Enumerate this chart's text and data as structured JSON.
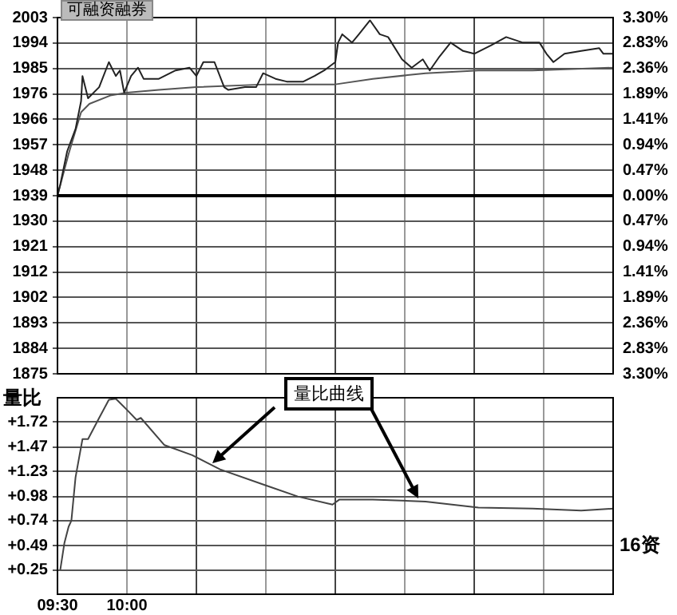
{
  "chart_data": [
    {
      "type": "line",
      "annotations": [
        "可融资融券"
      ],
      "marker": "none",
      "grid": true,
      "tick_labels": "y",
      "xlim": [
        9.5,
        13.5
      ],
      "xticks": [
        {
          "value": 9.5,
          "label": null
        },
        {
          "value": 10,
          "label": null
        },
        {
          "value": 10.5,
          "label": null
        },
        {
          "value": 11,
          "label": null
        },
        {
          "value": 11.5,
          "label": null
        },
        {
          "value": 12,
          "label": null
        },
        {
          "value": 12.5,
          "label": null
        },
        {
          "value": 13,
          "label": null
        },
        {
          "value": 13.5,
          "label": null
        }
      ],
      "ylim": [
        1875,
        2003
      ],
      "yticks": [
        {
          "value": 1875,
          "label": "1875"
        },
        {
          "value": 1884.14,
          "label": "1884"
        },
        {
          "value": 1893.29,
          "label": "1893"
        },
        {
          "value": 1902.43,
          "label": "1902"
        },
        {
          "value": 1911.57,
          "label": "1912"
        },
        {
          "value": 1920.71,
          "label": "1921"
        },
        {
          "value": 1929.86,
          "label": "1930"
        },
        {
          "value": 1939,
          "label": "1939"
        },
        {
          "value": 1948.14,
          "label": "1948"
        },
        {
          "value": 1957.29,
          "label": "1957"
        },
        {
          "value": 1966.43,
          "label": "1966"
        },
        {
          "value": 1975.57,
          "label": "1976"
        },
        {
          "value": 1984.71,
          "label": "1985"
        },
        {
          "value": 1993.86,
          "label": "1994"
        },
        {
          "value": 2003,
          "label": "2003"
        }
      ],
      "y2lim": [
        -3.3,
        3.3
      ],
      "y2ticks": [
        {
          "value": -3.3,
          "label": "3.30%"
        },
        {
          "value": -2.83,
          "label": "2.83%"
        },
        {
          "value": -2.36,
          "label": "2.36%"
        },
        {
          "value": -1.89,
          "label": "1.89%"
        },
        {
          "value": -1.41,
          "label": "1.41%"
        },
        {
          "value": -0.94,
          "label": "0.94%"
        },
        {
          "value": -0.47,
          "label": "0.47%"
        },
        {
          "value": 0,
          "label": "0.00%"
        },
        {
          "value": 0.47,
          "label": "0.47%"
        },
        {
          "value": 0.94,
          "label": "0.94%"
        },
        {
          "value": 1.41,
          "label": "1.41%"
        },
        {
          "value": 1.89,
          "label": "1.89%"
        },
        {
          "value": 2.36,
          "label": "2.36%"
        },
        {
          "value": 2.83,
          "label": "2.83%"
        },
        {
          "value": 3.3,
          "label": "3.30%"
        }
      ],
      "ref_lines": [
        {
          "axis": "y",
          "value": 1939,
          "color": "#000000"
        }
      ],
      "series": [
        {
          "color": "#222222",
          "x": [
            9.5,
            9.52,
            9.57,
            9.63,
            9.67,
            9.68,
            9.72,
            9.8,
            9.87,
            9.92,
            9.95,
            9.98,
            10.03,
            10.08,
            10.12,
            10.23,
            10.35,
            10.45,
            10.5,
            10.55,
            10.63,
            10.7,
            10.73,
            10.85,
            10.93,
            10.98,
            11.07,
            11.15,
            11.27,
            11.35,
            11.42,
            11.5,
            11.52,
            11.55,
            11.62,
            11.67,
            11.75,
            11.82,
            11.88,
            11.98,
            12.05,
            12.13,
            12.18,
            12.25,
            12.33,
            12.42,
            12.5,
            12.62,
            12.73,
            12.85,
            12.97,
            13.02,
            13.07,
            13.15,
            13.27,
            13.4,
            13.43,
            13.5
          ],
          "values": [
            1939,
            1943,
            1955,
            1963,
            1973,
            1982,
            1974,
            1978,
            1987,
            1982,
            1984,
            1976,
            1982,
            1985,
            1981,
            1981,
            1984,
            1985,
            1982,
            1987,
            1987,
            1978,
            1977,
            1978,
            1978,
            1983,
            1981,
            1980,
            1980,
            1982,
            1984,
            1987,
            1994,
            1997,
            1994,
            1997,
            2002,
            1997,
            1996,
            1988,
            1985,
            1988,
            1984,
            1989,
            1994,
            1991,
            1990,
            1993,
            1996,
            1994,
            1994,
            1990,
            1987,
            1990,
            1991,
            1992,
            1990,
            1990
          ]
        },
        {
          "color": "#555555",
          "x": [
            9.5,
            9.58,
            9.67,
            9.73,
            9.88,
            10,
            10.23,
            10.5,
            11,
            11.5,
            11.77,
            12.15,
            12.53,
            12.92,
            13.5
          ],
          "values": [
            1939,
            1954,
            1969,
            1972,
            1975,
            1976,
            1977,
            1978,
            1979,
            1979,
            1981,
            1983,
            1984,
            1984,
            1985
          ]
        }
      ]
    },
    {
      "type": "line",
      "ylabel": "量比",
      "annotations": [
        "量比曲线",
        "16资"
      ],
      "marker": "none",
      "grid": true,
      "xlim": [
        9.5,
        13.5
      ],
      "xticks": [
        {
          "value": 9.5,
          "label": "09:30"
        },
        {
          "value": 10,
          "label": "10:00"
        },
        {
          "value": 10.5,
          "label": null
        },
        {
          "value": 11,
          "label": null
        },
        {
          "value": 11.5,
          "label": null
        },
        {
          "value": 12,
          "label": null
        },
        {
          "value": 12.5,
          "label": null
        },
        {
          "value": 13,
          "label": null
        },
        {
          "value": 13.5,
          "label": null
        }
      ],
      "ylim": [
        0.01,
        1.96
      ],
      "yticks": [
        {
          "value": 0.25,
          "label": "+0.25"
        },
        {
          "value": 0.49,
          "label": "+0.49"
        },
        {
          "value": 0.74,
          "label": "+0.74"
        },
        {
          "value": 0.98,
          "label": "+0.98"
        },
        {
          "value": 1.23,
          "label": "+1.23"
        },
        {
          "value": 1.47,
          "label": "+1.47"
        },
        {
          "value": 1.72,
          "label": "+1.72"
        }
      ],
      "series": [
        {
          "color": "#444444",
          "x": [
            9.52,
            9.55,
            9.58,
            9.6,
            9.63,
            9.68,
            9.72,
            9.8,
            9.87,
            9.92,
            10,
            10.07,
            10.1,
            10.27,
            10.47,
            10.67,
            11,
            11.23,
            11.48,
            11.53,
            11.77,
            12.15,
            12.53,
            12.92,
            13.27,
            13.5
          ],
          "values": [
            0.25,
            0.52,
            0.68,
            0.74,
            1.17,
            1.55,
            1.55,
            1.76,
            1.94,
            1.95,
            1.84,
            1.74,
            1.76,
            1.49,
            1.39,
            1.25,
            1.09,
            0.98,
            0.9,
            0.95,
            0.95,
            0.93,
            0.87,
            0.86,
            0.84,
            0.86
          ]
        }
      ]
    }
  ]
}
